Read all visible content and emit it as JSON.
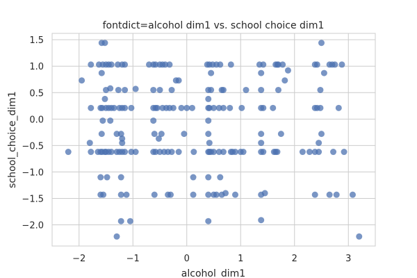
{
  "chart_data": {
    "type": "scatter",
    "title": "fontdict=alcohol dim1 vs. school choice dim1",
    "xlabel": "alcohol_dim1",
    "ylabel": "school_choice_dim1",
    "xlim": [
      -2.5,
      3.5
    ],
    "ylim": [
      -2.4,
      1.62
    ],
    "xticks": [
      -2,
      -1,
      0,
      1,
      2,
      3
    ],
    "xtick_labels": [
      "−2",
      "−1",
      "0",
      "1",
      "2",
      "3"
    ],
    "yticks": [
      -2.0,
      -1.5,
      -1.0,
      -0.5,
      0.0,
      0.5,
      1.0,
      1.5
    ],
    "ytick_labels": [
      "−2.0",
      "−1.5",
      "−1.0",
      "−0.5",
      "0.0",
      "0.5",
      "1.0",
      "1.5"
    ],
    "grid": true,
    "marker_color": "#4C72B0",
    "marker_alpha": 0.75,
    "points": [
      {
        "x": -2.2,
        "y": -0.62
      },
      {
        "x": -1.95,
        "y": 0.73
      },
      {
        "x": -1.8,
        "y": -0.45
      },
      {
        "x": -1.78,
        "y": -0.62
      },
      {
        "x": -1.78,
        "y": 1.03
      },
      {
        "x": -1.78,
        "y": 0.21
      },
      {
        "x": -1.65,
        "y": -0.62
      },
      {
        "x": -1.63,
        "y": 1.03
      },
      {
        "x": -1.6,
        "y": 0.21
      },
      {
        "x": -1.6,
        "y": -0.62
      },
      {
        "x": -1.6,
        "y": -1.1
      },
      {
        "x": -1.6,
        "y": -1.43
      },
      {
        "x": -1.58,
        "y": 1.44
      },
      {
        "x": -1.58,
        "y": 0.87
      },
      {
        "x": -1.58,
        "y": -0.28
      },
      {
        "x": -1.57,
        "y": 0.21
      },
      {
        "x": -1.57,
        "y": -0.62
      },
      {
        "x": -1.56,
        "y": -0.03
      },
      {
        "x": -1.56,
        "y": 1.03
      },
      {
        "x": -1.55,
        "y": -1.43
      },
      {
        "x": -1.52,
        "y": 1.44
      },
      {
        "x": -1.52,
        "y": 0.38
      },
      {
        "x": -1.52,
        "y": -0.62
      },
      {
        "x": -1.5,
        "y": 1.03
      },
      {
        "x": -1.5,
        "y": 0.21
      },
      {
        "x": -1.5,
        "y": 0.55
      },
      {
        "x": -1.5,
        "y": -0.62
      },
      {
        "x": -1.48,
        "y": -1.1
      },
      {
        "x": -1.45,
        "y": 1.03
      },
      {
        "x": -1.45,
        "y": 0.21
      },
      {
        "x": -1.45,
        "y": -0.62
      },
      {
        "x": -1.42,
        "y": 0.58
      },
      {
        "x": -1.42,
        "y": -0.03
      },
      {
        "x": -1.4,
        "y": 1.03
      },
      {
        "x": -1.4,
        "y": 0.21
      },
      {
        "x": -1.4,
        "y": -0.62
      },
      {
        "x": -1.35,
        "y": 0.21
      },
      {
        "x": -1.3,
        "y": -2.22
      },
      {
        "x": -1.3,
        "y": -0.28
      },
      {
        "x": -1.3,
        "y": -0.62
      },
      {
        "x": -1.28,
        "y": 1.03
      },
      {
        "x": -1.27,
        "y": 0.55
      },
      {
        "x": -1.25,
        "y": 0.21
      },
      {
        "x": -1.25,
        "y": -0.62
      },
      {
        "x": -1.22,
        "y": -0.28
      },
      {
        "x": -1.22,
        "y": -1.1
      },
      {
        "x": -1.22,
        "y": -1.43
      },
      {
        "x": -1.22,
        "y": -1.93
      },
      {
        "x": -1.2,
        "y": 1.03
      },
      {
        "x": -1.2,
        "y": -0.37
      },
      {
        "x": -1.2,
        "y": -0.45
      },
      {
        "x": -1.2,
        "y": 0.21
      },
      {
        "x": -1.2,
        "y": -0.62
      },
      {
        "x": -1.15,
        "y": 1.03
      },
      {
        "x": -1.15,
        "y": 0.55
      },
      {
        "x": -1.15,
        "y": 0.21
      },
      {
        "x": -1.15,
        "y": -0.62
      },
      {
        "x": -1.12,
        "y": -1.43
      },
      {
        "x": -1.05,
        "y": -1.93
      },
      {
        "x": -1.03,
        "y": 0.21
      },
      {
        "x": -1.03,
        "y": -0.62
      },
      {
        "x": -0.95,
        "y": 0.57
      },
      {
        "x": -0.95,
        "y": -0.62
      },
      {
        "x": -0.7,
        "y": 1.03
      },
      {
        "x": -0.62,
        "y": 1.03
      },
      {
        "x": -0.62,
        "y": 0.55
      },
      {
        "x": -0.62,
        "y": 0.21
      },
      {
        "x": -0.62,
        "y": -0.03
      },
      {
        "x": -0.62,
        "y": -0.62
      },
      {
        "x": -0.6,
        "y": -1.43
      },
      {
        "x": -0.6,
        "y": -0.28
      },
      {
        "x": -0.58,
        "y": 1.03
      },
      {
        "x": -0.58,
        "y": 0.21
      },
      {
        "x": -0.58,
        "y": -0.62
      },
      {
        "x": -0.55,
        "y": 0.21
      },
      {
        "x": -0.52,
        "y": -0.37
      },
      {
        "x": -0.5,
        "y": 1.03
      },
      {
        "x": -0.5,
        "y": 0.55
      },
      {
        "x": -0.5,
        "y": -0.62
      },
      {
        "x": -0.47,
        "y": -0.28
      },
      {
        "x": -0.45,
        "y": 1.03
      },
      {
        "x": -0.45,
        "y": 0.21
      },
      {
        "x": -0.42,
        "y": -0.62
      },
      {
        "x": -0.4,
        "y": 1.03
      },
      {
        "x": -0.38,
        "y": 0.21
      },
      {
        "x": -0.35,
        "y": -0.62
      },
      {
        "x": -0.35,
        "y": -1.43
      },
      {
        "x": -0.32,
        "y": 1.03
      },
      {
        "x": -0.32,
        "y": 0.21
      },
      {
        "x": -0.3,
        "y": -1.43
      },
      {
        "x": -0.28,
        "y": 0.55
      },
      {
        "x": -0.28,
        "y": -0.62
      },
      {
        "x": -0.25,
        "y": 0.21
      },
      {
        "x": -0.2,
        "y": 0.73
      },
      {
        "x": -0.15,
        "y": 0.73
      },
      {
        "x": -0.15,
        "y": -0.62
      },
      {
        "x": -0.1,
        "y": 0.21
      },
      {
        "x": -0.05,
        "y": -0.28
      },
      {
        "x": 0.0,
        "y": 0.21
      },
      {
        "x": 0.1,
        "y": 0.21
      },
      {
        "x": 0.12,
        "y": -1.1
      },
      {
        "x": 0.12,
        "y": -1.43
      },
      {
        "x": 0.13,
        "y": -0.62
      },
      {
        "x": 0.38,
        "y": 1.03
      },
      {
        "x": 0.4,
        "y": 0.55
      },
      {
        "x": 0.4,
        "y": 0.38
      },
      {
        "x": 0.4,
        "y": 0.21
      },
      {
        "x": 0.4,
        "y": -0.03
      },
      {
        "x": 0.4,
        "y": -0.62
      },
      {
        "x": 0.4,
        "y": -0.28
      },
      {
        "x": 0.4,
        "y": -1.1
      },
      {
        "x": 0.4,
        "y": -1.43
      },
      {
        "x": 0.4,
        "y": -1.93
      },
      {
        "x": 0.42,
        "y": 1.03
      },
      {
        "x": 0.42,
        "y": 0.21
      },
      {
        "x": 0.42,
        "y": -0.45
      },
      {
        "x": 0.42,
        "y": -0.62
      },
      {
        "x": 0.45,
        "y": 0.87
      },
      {
        "x": 0.45,
        "y": 0.55
      },
      {
        "x": 0.45,
        "y": -0.62
      },
      {
        "x": 0.48,
        "y": 1.03
      },
      {
        "x": 0.5,
        "y": 0.21
      },
      {
        "x": 0.5,
        "y": -0.62
      },
      {
        "x": 0.5,
        "y": -1.43
      },
      {
        "x": 0.55,
        "y": 1.03
      },
      {
        "x": 0.55,
        "y": -1.43
      },
      {
        "x": 0.6,
        "y": 0.21
      },
      {
        "x": 0.6,
        "y": -0.62
      },
      {
        "x": 0.62,
        "y": -1.1
      },
      {
        "x": 0.62,
        "y": 1.03
      },
      {
        "x": 0.65,
        "y": 0.55
      },
      {
        "x": 0.65,
        "y": -1.43
      },
      {
        "x": 0.68,
        "y": 0.55
      },
      {
        "x": 0.68,
        "y": 0.21
      },
      {
        "x": 0.68,
        "y": -0.62
      },
      {
        "x": 0.72,
        "y": -1.4
      },
      {
        "x": 0.8,
        "y": 0.21
      },
      {
        "x": 0.82,
        "y": -0.62
      },
      {
        "x": 0.82,
        "y": 1.03
      },
      {
        "x": 0.85,
        "y": -0.62
      },
      {
        "x": 0.9,
        "y": -1.43
      },
      {
        "x": 0.9,
        "y": -0.62
      },
      {
        "x": 1.0,
        "y": -0.62
      },
      {
        "x": 1.02,
        "y": 0.21
      },
      {
        "x": 1.05,
        "y": -0.62
      },
      {
        "x": 1.1,
        "y": 0.55
      },
      {
        "x": 1.35,
        "y": 1.03
      },
      {
        "x": 1.38,
        "y": 0.87
      },
      {
        "x": 1.38,
        "y": 0.55
      },
      {
        "x": 1.38,
        "y": 0.21
      },
      {
        "x": 1.38,
        "y": -0.28
      },
      {
        "x": 1.38,
        "y": -0.45
      },
      {
        "x": 1.38,
        "y": -0.62
      },
      {
        "x": 1.38,
        "y": -1.43
      },
      {
        "x": 1.38,
        "y": -1.91
      },
      {
        "x": 1.42,
        "y": 0.21
      },
      {
        "x": 1.42,
        "y": 1.03
      },
      {
        "x": 1.42,
        "y": -0.62
      },
      {
        "x": 1.45,
        "y": -1.4
      },
      {
        "x": 1.6,
        "y": 0.21
      },
      {
        "x": 1.62,
        "y": -0.62
      },
      {
        "x": 1.65,
        "y": 1.03
      },
      {
        "x": 1.65,
        "y": -0.62
      },
      {
        "x": 1.68,
        "y": 1.03
      },
      {
        "x": 1.68,
        "y": -0.62
      },
      {
        "x": 1.7,
        "y": 1.03
      },
      {
        "x": 1.7,
        "y": 0.55
      },
      {
        "x": 1.75,
        "y": -0.28
      },
      {
        "x": 1.78,
        "y": 1.03
      },
      {
        "x": 1.82,
        "y": 0.73
      },
      {
        "x": 1.88,
        "y": 0.92
      },
      {
        "x": 2.15,
        "y": -0.62
      },
      {
        "x": 2.28,
        "y": -0.62
      },
      {
        "x": 2.38,
        "y": 1.03
      },
      {
        "x": 2.38,
        "y": 0.21
      },
      {
        "x": 2.38,
        "y": -0.62
      },
      {
        "x": 2.38,
        "y": -1.43
      },
      {
        "x": 2.42,
        "y": 1.03
      },
      {
        "x": 2.42,
        "y": 0.21
      },
      {
        "x": 2.45,
        "y": -0.62
      },
      {
        "x": 2.45,
        "y": -0.45
      },
      {
        "x": 2.48,
        "y": 0.55
      },
      {
        "x": 2.48,
        "y": 0.21
      },
      {
        "x": 2.5,
        "y": 1.44
      },
      {
        "x": 2.5,
        "y": -0.28
      },
      {
        "x": 2.55,
        "y": 0.87
      },
      {
        "x": 2.65,
        "y": 1.03
      },
      {
        "x": 2.65,
        "y": -1.43
      },
      {
        "x": 2.7,
        "y": 1.03
      },
      {
        "x": 2.72,
        "y": -0.62
      },
      {
        "x": 2.75,
        "y": 1.03
      },
      {
        "x": 2.78,
        "y": -1.43
      },
      {
        "x": 2.82,
        "y": 0.21
      },
      {
        "x": 2.88,
        "y": 1.03
      },
      {
        "x": 2.92,
        "y": -0.62
      },
      {
        "x": 3.08,
        "y": -1.43
      },
      {
        "x": 3.2,
        "y": -2.22
      }
    ]
  }
}
